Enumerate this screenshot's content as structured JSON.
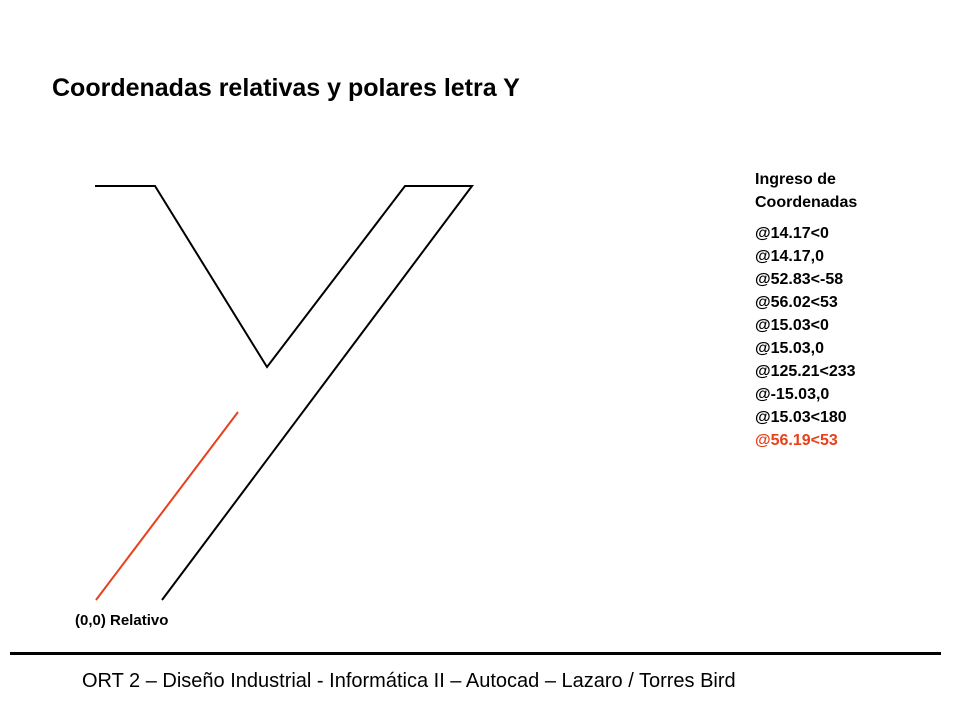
{
  "title": "Coordenadas relativas y polares letra Y",
  "panel": {
    "heading": "Ingreso de Coordenadas",
    "commands": [
      "@14.17<0",
      "@14.17,0",
      "@52.83<-58",
      "@56.02<53",
      "@15.03<0",
      "@15.03,0",
      "@125.21<233",
      "@-15.03,0",
      "@15.03<180"
    ],
    "highlight": "@56.19<53"
  },
  "origin_label": "(0,0) Relativo",
  "footer": "ORT 2 – Diseño Industrial - Informática II – Autocad – Lazaro / Torres Bird"
}
